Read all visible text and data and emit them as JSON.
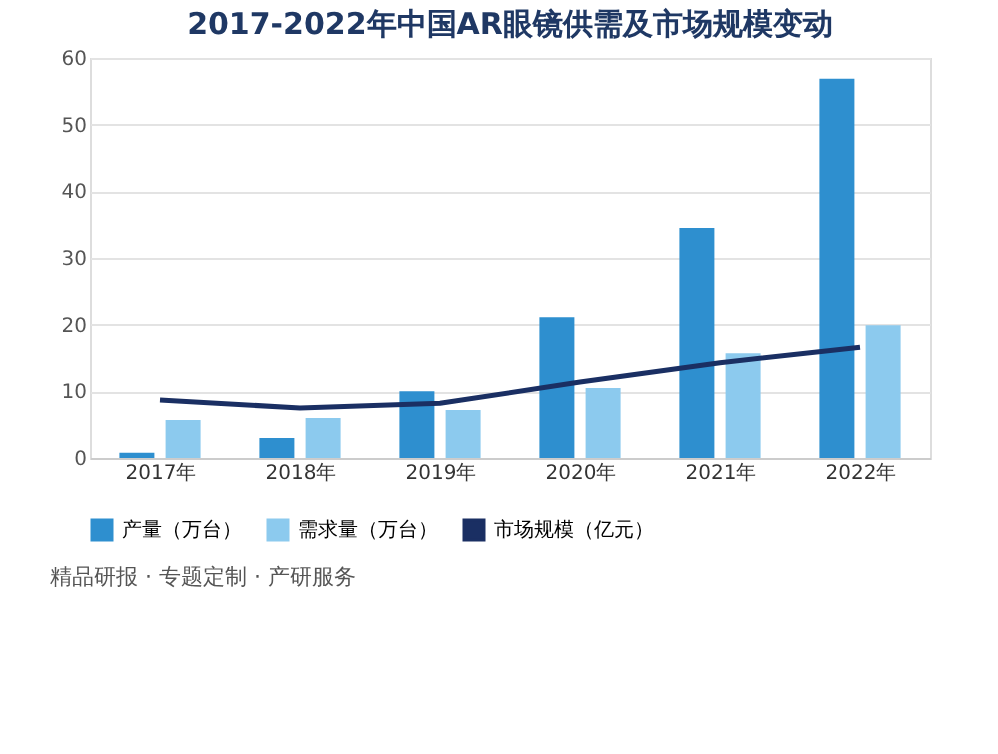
{
  "chart_data": {
    "type": "bar",
    "title": "2017-2022年中国AR眼镜供需及市场规模变动",
    "categories": [
      "2017年",
      "2018年",
      "2019年",
      "2020年",
      "2021年",
      "2022年"
    ],
    "series": [
      {
        "name": "产量（万台）",
        "color": "#2e8fcf",
        "values": [
          0.8,
          3.0,
          10.0,
          21.1,
          34.5,
          56.9
        ]
      },
      {
        "name": "需求量（万台）",
        "color": "#8ccaee",
        "values": [
          5.7,
          6.0,
          7.2,
          10.5,
          15.7,
          19.9
        ]
      },
      {
        "name": "市场规模（亿元）",
        "color": "#1a2f63",
        "type": "line",
        "values": [
          8.7,
          7.5,
          8.2,
          11.4,
          14.3,
          16.6
        ]
      }
    ],
    "ylim": [
      0,
      60
    ],
    "yticks": [
      0,
      10,
      20,
      30,
      40,
      50,
      60
    ],
    "grid": "y",
    "legend": "bottom",
    "marker": "none",
    "line_style": "solid",
    "annotations": [
      "精品研报 · 专题定制 · 产研服务"
    ]
  }
}
